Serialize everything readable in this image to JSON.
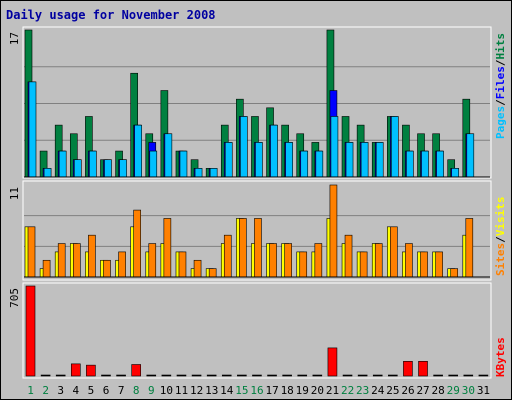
{
  "title": "Daily usage for November 2008",
  "colors": {
    "title": "#0000a0",
    "background": "#c0c0c0",
    "hits": "#008040",
    "files": "#0000ff",
    "pages": "#00c0ff",
    "visits": "#ffff00",
    "sites": "#ff8000",
    "kbytes": "#ff0000",
    "weekend_label": "#008040",
    "weekday_label": "#000000",
    "separator": "#000000"
  },
  "chart_data": [
    {
      "type": "bar",
      "panel": "hits-files-pages",
      "ymax_label": "17",
      "ylim": [
        0,
        17
      ],
      "categories": [
        "1",
        "2",
        "3",
        "4",
        "5",
        "6",
        "7",
        "8",
        "9",
        "10",
        "11",
        "12",
        "13",
        "14",
        "15",
        "16",
        "17",
        "18",
        "19",
        "20",
        "21",
        "22",
        "23",
        "24",
        "25",
        "26",
        "27",
        "28",
        "29",
        "30",
        "31"
      ],
      "series": [
        {
          "name": "Hits",
          "values": [
            17,
            3,
            6,
            5,
            7,
            2,
            3,
            12,
            5,
            10,
            3,
            2,
            1,
            6,
            9,
            7,
            8,
            6,
            5,
            4,
            17,
            7,
            6,
            4,
            7,
            6,
            5,
            5,
            2,
            9,
            0
          ]
        },
        {
          "name": "Files",
          "values": [
            11,
            1,
            3,
            2,
            3,
            2,
            2,
            6,
            4,
            5,
            3,
            1,
            1,
            4,
            7,
            4,
            6,
            4,
            3,
            3,
            10,
            4,
            4,
            4,
            7,
            3,
            3,
            3,
            1,
            5,
            0
          ]
        },
        {
          "name": "Pages",
          "values": [
            11,
            1,
            3,
            2,
            3,
            2,
            2,
            6,
            3,
            5,
            3,
            1,
            1,
            4,
            7,
            4,
            6,
            4,
            3,
            3,
            7,
            4,
            4,
            4,
            7,
            3,
            3,
            3,
            1,
            5,
            0
          ]
        }
      ],
      "side_labels": [
        "Pages",
        "/",
        "Files",
        "/",
        "Hits"
      ]
    },
    {
      "type": "bar",
      "panel": "visits-sites",
      "ymax_label": "11",
      "ylim": [
        0,
        11
      ],
      "categories": [
        "1",
        "2",
        "3",
        "4",
        "5",
        "6",
        "7",
        "8",
        "9",
        "10",
        "11",
        "12",
        "13",
        "14",
        "15",
        "16",
        "17",
        "18",
        "19",
        "20",
        "21",
        "22",
        "23",
        "24",
        "25",
        "26",
        "27",
        "28",
        "29",
        "30",
        "31"
      ],
      "series": [
        {
          "name": "Visits",
          "values": [
            6,
            1,
            3,
            4,
            3,
            2,
            2,
            6,
            3,
            4,
            3,
            1,
            1,
            4,
            7,
            4,
            4,
            4,
            3,
            3,
            7,
            4,
            3,
            4,
            6,
            3,
            3,
            3,
            1,
            5,
            0
          ]
        },
        {
          "name": "Sites",
          "values": [
            6,
            2,
            4,
            4,
            5,
            2,
            3,
            8,
            4,
            7,
            3,
            2,
            1,
            5,
            7,
            7,
            4,
            4,
            3,
            4,
            11,
            5,
            3,
            4,
            6,
            4,
            3,
            3,
            1,
            7,
            0
          ]
        }
      ],
      "side_labels": [
        "Sites",
        "/",
        "Visits"
      ]
    },
    {
      "type": "bar",
      "panel": "kbytes",
      "ymax_label": "705",
      "ylim": [
        0,
        705
      ],
      "categories": [
        "1",
        "2",
        "3",
        "4",
        "5",
        "6",
        "7",
        "8",
        "9",
        "10",
        "11",
        "12",
        "13",
        "14",
        "15",
        "16",
        "17",
        "18",
        "19",
        "20",
        "21",
        "22",
        "23",
        "24",
        "25",
        "26",
        "27",
        "28",
        "29",
        "30",
        "31"
      ],
      "series": [
        {
          "name": "KBytes",
          "values": [
            705,
            0,
            0,
            95,
            85,
            0,
            0,
            90,
            0,
            0,
            0,
            0,
            0,
            0,
            0,
            0,
            0,
            0,
            0,
            0,
            220,
            0,
            0,
            0,
            0,
            115,
            115,
            0,
            0,
            0,
            0
          ]
        }
      ],
      "side_labels": [
        "KBytes"
      ]
    }
  ],
  "x_labels": [
    {
      "text": "1",
      "weekend": true
    },
    {
      "text": "2",
      "weekend": true
    },
    {
      "text": "3",
      "weekend": false
    },
    {
      "text": "4",
      "weekend": false
    },
    {
      "text": "5",
      "weekend": false
    },
    {
      "text": "6",
      "weekend": false
    },
    {
      "text": "7",
      "weekend": false
    },
    {
      "text": "8",
      "weekend": true
    },
    {
      "text": "9",
      "weekend": true
    },
    {
      "text": "10",
      "weekend": false
    },
    {
      "text": "11",
      "weekend": false
    },
    {
      "text": "12",
      "weekend": false
    },
    {
      "text": "13",
      "weekend": false
    },
    {
      "text": "14",
      "weekend": false
    },
    {
      "text": "15",
      "weekend": true
    },
    {
      "text": "16",
      "weekend": true
    },
    {
      "text": "17",
      "weekend": false
    },
    {
      "text": "18",
      "weekend": false
    },
    {
      "text": "19",
      "weekend": false
    },
    {
      "text": "20",
      "weekend": false
    },
    {
      "text": "21",
      "weekend": false
    },
    {
      "text": "22",
      "weekend": true
    },
    {
      "text": "23",
      "weekend": true
    },
    {
      "text": "24",
      "weekend": false
    },
    {
      "text": "25",
      "weekend": false
    },
    {
      "text": "26",
      "weekend": false
    },
    {
      "text": "27",
      "weekend": false
    },
    {
      "text": "28",
      "weekend": false
    },
    {
      "text": "29",
      "weekend": true
    },
    {
      "text": "30",
      "weekend": true
    },
    {
      "text": "31",
      "weekend": false
    }
  ]
}
